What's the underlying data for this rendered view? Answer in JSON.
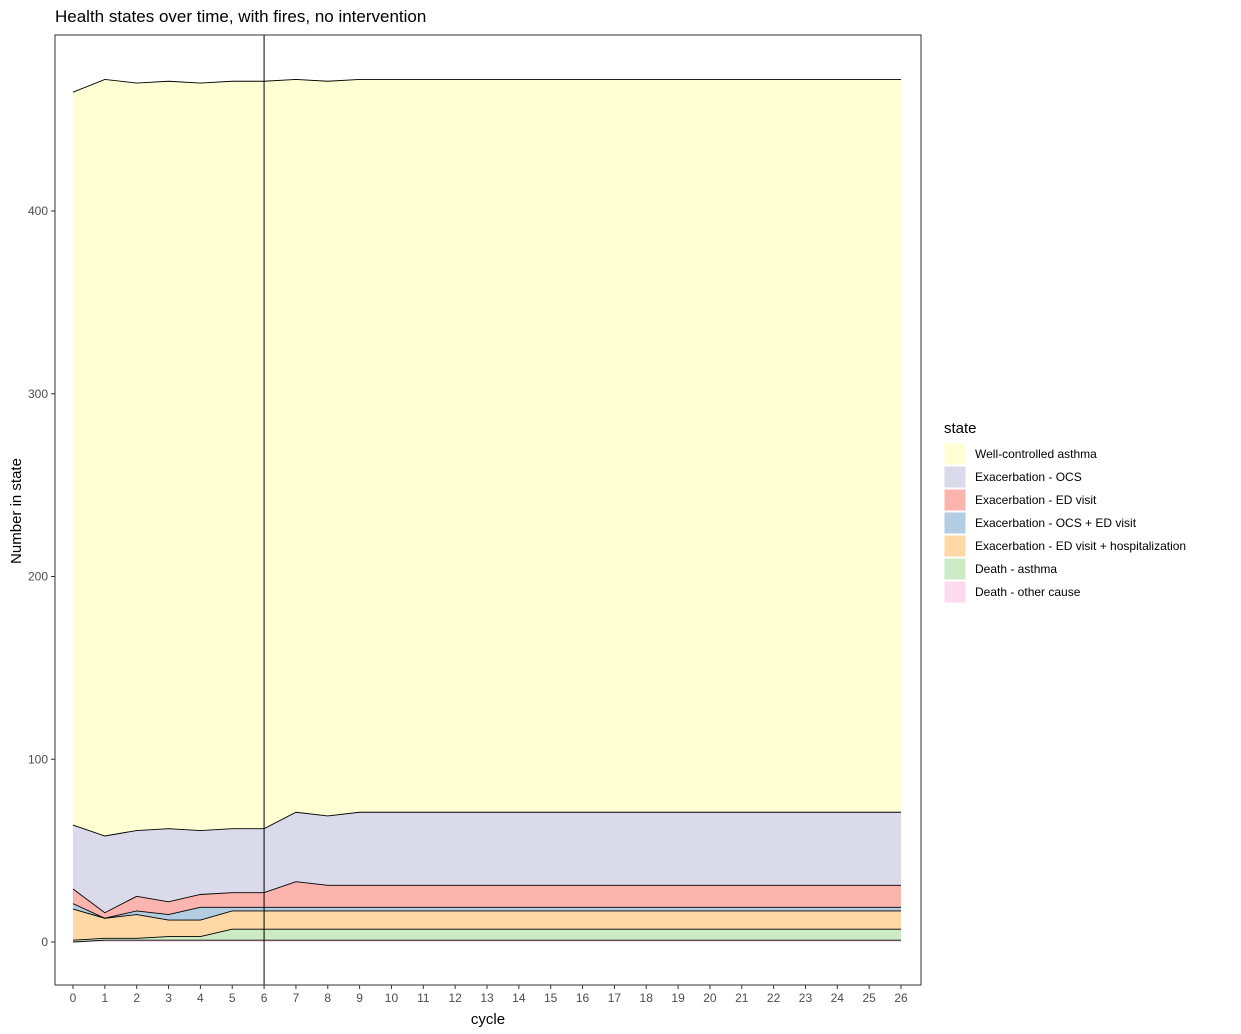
{
  "chart_data": {
    "type": "area",
    "stacked": true,
    "title": "Health states over time, with fires, no intervention",
    "xlabel": "cycle",
    "ylabel": "Number in state",
    "xlim": [
      0,
      26
    ],
    "ylim": [
      0,
      472
    ],
    "x": [
      0,
      1,
      2,
      3,
      4,
      5,
      6,
      7,
      8,
      9,
      10,
      11,
      12,
      13,
      14,
      15,
      16,
      17,
      18,
      19,
      20,
      21,
      22,
      23,
      24,
      25,
      26
    ],
    "x_ticks": [
      "0",
      "1",
      "2",
      "3",
      "4",
      "5",
      "6",
      "7",
      "8",
      "9",
      "10",
      "11",
      "12",
      "13",
      "14",
      "15",
      "16",
      "17",
      "18",
      "19",
      "20",
      "21",
      "22",
      "23",
      "24",
      "25",
      "26"
    ],
    "y_ticks": [
      0,
      100,
      200,
      300,
      400
    ],
    "vline_x": 6,
    "grid": false,
    "stack_order": "first legend entry on top",
    "legend": {
      "title": "state",
      "placement": "right"
    },
    "series": [
      {
        "name": "Well-controlled asthma",
        "color": "#FFFFD4",
        "values": [
          401,
          414,
          409,
          409,
          409,
          409,
          409,
          401,
          402,
          401,
          401,
          401,
          401,
          401,
          401,
          401,
          401,
          401,
          401,
          401,
          401,
          401,
          401,
          401,
          401,
          401,
          401
        ]
      },
      {
        "name": "Exacerbation - OCS",
        "color": "#DADAEB",
        "values": [
          35,
          42,
          36,
          40,
          35,
          35,
          35,
          38,
          38,
          40,
          40,
          40,
          40,
          40,
          40,
          40,
          40,
          40,
          40,
          40,
          40,
          40,
          40,
          40,
          40,
          40,
          40
        ]
      },
      {
        "name": "Exacerbation - ED visit",
        "color": "#FBB4AE",
        "values": [
          8,
          3,
          8,
          7,
          7,
          8,
          8,
          14,
          12,
          12,
          12,
          12,
          12,
          12,
          12,
          12,
          12,
          12,
          12,
          12,
          12,
          12,
          12,
          12,
          12,
          12,
          12
        ]
      },
      {
        "name": "Exacerbation - OCS + ED visit",
        "color": "#B3CDE3",
        "values": [
          3,
          0,
          2,
          3,
          7,
          2,
          2,
          2,
          2,
          2,
          2,
          2,
          2,
          2,
          2,
          2,
          2,
          2,
          2,
          2,
          2,
          2,
          2,
          2,
          2,
          2,
          2
        ]
      },
      {
        "name": "Exacerbation - ED visit + hospitalization",
        "color": "#FED9A6",
        "values": [
          17,
          11,
          13,
          9,
          9,
          10,
          10,
          10,
          10,
          10,
          10,
          10,
          10,
          10,
          10,
          10,
          10,
          10,
          10,
          10,
          10,
          10,
          10,
          10,
          10,
          10,
          10
        ]
      },
      {
        "name": "Death - asthma",
        "color": "#CCEBC5",
        "values": [
          1,
          1,
          1,
          2,
          2,
          6,
          6,
          6,
          6,
          6,
          6,
          6,
          6,
          6,
          6,
          6,
          6,
          6,
          6,
          6,
          6,
          6,
          6,
          6,
          6,
          6,
          6
        ]
      },
      {
        "name": "Death - other cause",
        "color": "#FDDAEC",
        "values": [
          0,
          1,
          1,
          1,
          1,
          1,
          1,
          1,
          1,
          1,
          1,
          1,
          1,
          1,
          1,
          1,
          1,
          1,
          1,
          1,
          1,
          1,
          1,
          1,
          1,
          1,
          1
        ]
      }
    ]
  }
}
